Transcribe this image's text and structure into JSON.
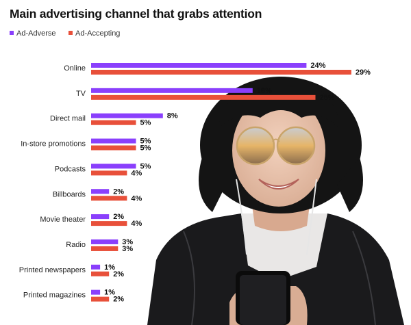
{
  "chart_data": {
    "type": "bar",
    "orientation": "horizontal",
    "title": "Main advertising channel that grabs attention",
    "categories": [
      "Online",
      "TV",
      "Direct mail",
      "In-store promotions",
      "Podcasts",
      "Billboards",
      "Movie theater",
      "Radio",
      "Printed newspapers",
      "Printed magazines"
    ],
    "series": [
      {
        "name": "Ad-Adverse",
        "color": "#8a3ffc",
        "values": [
          24,
          18,
          8,
          5,
          5,
          2,
          2,
          3,
          1,
          1
        ]
      },
      {
        "name": "Ad-Accepting",
        "color": "#e8503a",
        "values": [
          29,
          25,
          5,
          5,
          4,
          4,
          4,
          3,
          2,
          2
        ]
      }
    ],
    "value_suffix": "%",
    "legend_position": "top-left",
    "grid": false
  },
  "photo": {
    "icon": "woman-with-glasses-photo-icon"
  }
}
